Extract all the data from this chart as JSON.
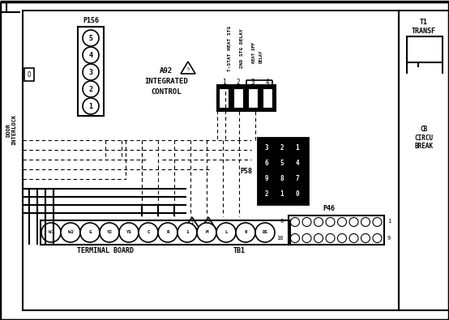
{
  "bg_color": "#ffffff",
  "line_color": "#000000",
  "p156_label": "P156",
  "p156_terminals": [
    "5",
    "4",
    "3",
    "2",
    "1"
  ],
  "a92_label": "A92",
  "a92_sub1": "INTEGRATED",
  "a92_sub2": "CONTROL",
  "p58_label": "P58",
  "p58_rows": [
    [
      "3",
      "2",
      "1"
    ],
    [
      "6",
      "5",
      "4"
    ],
    [
      "9",
      "8",
      "7"
    ],
    [
      "2",
      "1",
      "0"
    ]
  ],
  "p46_label": "P46",
  "tb1_label": "TB1",
  "terminal_board_label": "TERMINAL BOARD",
  "tb1_terminals": [
    "W1",
    "W2",
    "G",
    "Y2",
    "Y1",
    "C",
    "R",
    "1",
    "M",
    "L",
    "0",
    "DS"
  ],
  "relay_labels_v": [
    "T-STAT HEAT STG",
    "2ND STG DELAY",
    "HEAT OFF\nDELAY"
  ],
  "relay_numbers": [
    "1",
    "2",
    "3",
    "4"
  ],
  "t1_label": "T1\nTRANSF",
  "cb_label": "CB\nCIRCU\nBREAK",
  "door_interlock": "DOOR\nINTERLOCK"
}
